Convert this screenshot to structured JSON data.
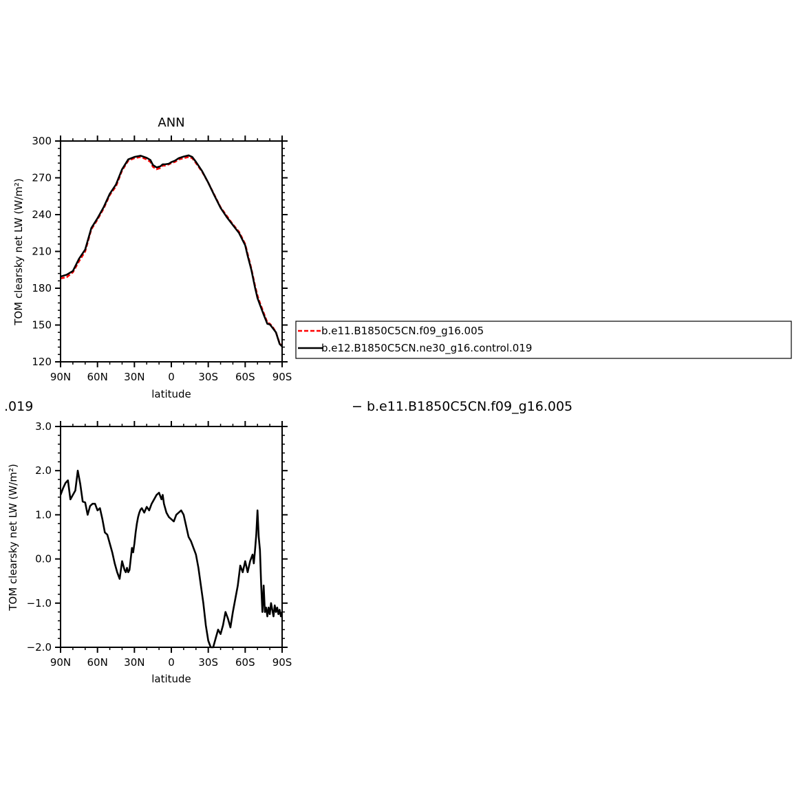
{
  "chart_data": [
    {
      "type": "line",
      "title": "ANN",
      "xlabel": "latitude",
      "ylabel": "TOM clearsky net LW (W/m²)",
      "xlim": [
        -90,
        90
      ],
      "ylim": [
        120,
        300
      ],
      "x_tick_values": [
        -90,
        -60,
        -30,
        0,
        30,
        60,
        90
      ],
      "x_tick_labels": [
        "90N",
        "60N",
        "30N",
        "0",
        "30S",
        "60S",
        "90S"
      ],
      "y_tick_values": [
        120,
        150,
        180,
        210,
        240,
        270,
        300
      ],
      "y_tick_labels": [
        "120",
        "150",
        "180",
        "210",
        "240",
        "270",
        "300"
      ],
      "grid": false,
      "legend_position": "right, outside plot",
      "series": [
        {
          "name": "b.e11.B1850C5CN.f09_g16.005",
          "color": "#ff0000",
          "style": "dashed",
          "x": [
            -90,
            -85,
            -80,
            -75,
            -70,
            -65,
            -60,
            -55,
            -50,
            -45,
            -40,
            -35,
            -30,
            -25,
            -20,
            -17,
            -15,
            -12,
            -9,
            -7,
            -5,
            -2,
            0,
            3,
            6,
            10,
            14,
            17,
            20,
            25,
            30,
            35,
            40,
            45,
            50,
            55,
            60,
            62,
            65,
            68,
            70,
            72,
            75,
            78,
            80,
            82,
            85,
            88,
            90
          ],
          "y": [
            188,
            189,
            193,
            202,
            210,
            228,
            236,
            245,
            256,
            263,
            276,
            284,
            286,
            287,
            285,
            283,
            279,
            277,
            278,
            280,
            280,
            281,
            282,
            283,
            285,
            286,
            287,
            286,
            282,
            275,
            266,
            256,
            246,
            239,
            232,
            226,
            216,
            208,
            196,
            182,
            174,
            168,
            160,
            152,
            151,
            149,
            144,
            135,
            133
          ]
        },
        {
          "name": "b.e12.B1850C5CN.ne30_g16.control.019",
          "color": "#000000",
          "style": "solid",
          "x": [
            -90,
            -85,
            -80,
            -75,
            -70,
            -65,
            -60,
            -55,
            -50,
            -45,
            -40,
            -35,
            -30,
            -25,
            -20,
            -17,
            -15,
            -12,
            -9,
            -7,
            -5,
            -2,
            0,
            3,
            6,
            10,
            14,
            17,
            20,
            25,
            30,
            35,
            40,
            45,
            50,
            55,
            60,
            62,
            65,
            68,
            70,
            72,
            75,
            78,
            80,
            82,
            85,
            88,
            90
          ],
          "y": [
            189.5,
            191,
            194,
            204,
            211.5,
            229,
            237,
            246,
            257,
            264.5,
            277,
            285,
            287,
            288,
            286.3,
            284.5,
            280.5,
            278.5,
            279.3,
            281,
            281,
            281.5,
            282.8,
            284,
            286,
            287.3,
            288.3,
            287,
            283,
            275.5,
            266,
            255.5,
            245.5,
            238,
            231.5,
            225,
            215,
            206.5,
            195,
            180.5,
            172,
            166.5,
            158.5,
            151,
            150.5,
            148,
            144,
            134.5,
            132.5
          ]
        }
      ]
    },
    {
      "type": "line",
      "title": "",
      "xlabel": "latitude",
      "ylabel": "TOM clearsky net LW (W/m²)",
      "xlim": [
        -90,
        90
      ],
      "ylim": [
        -2.0,
        3.0
      ],
      "x_tick_values": [
        -90,
        -60,
        -30,
        0,
        30,
        60,
        90
      ],
      "x_tick_labels": [
        "90N",
        "60N",
        "30N",
        "0",
        "30S",
        "60S",
        "90S"
      ],
      "y_tick_values": [
        -2.0,
        -1.0,
        0.0,
        1.0,
        2.0,
        3.0
      ],
      "y_tick_labels": [
        "−2.0",
        "−1.0",
        "0.0",
        "1.0",
        "2.0",
        "3.0"
      ],
      "grid": false,
      "series": [
        {
          "color": "#000000",
          "style": "solid",
          "x": [
            -90,
            -88,
            -86,
            -84,
            -82,
            -80,
            -78,
            -76,
            -74,
            -72,
            -70,
            -68,
            -66,
            -64,
            -62,
            -60,
            -58,
            -56,
            -54,
            -52,
            -50,
            -48,
            -46,
            -44,
            -42,
            -40,
            -38,
            -37,
            -36,
            -35,
            -34,
            -33,
            -32,
            -31,
            -30,
            -29,
            -28,
            -27,
            -26,
            -25,
            -24,
            -22,
            -20,
            -18,
            -16,
            -14,
            -12,
            -10,
            -8,
            -7,
            -6,
            -4,
            -2,
            0,
            2,
            4,
            6,
            8,
            10,
            12,
            14,
            16,
            18,
            20,
            22,
            24,
            26,
            28,
            30,
            32,
            34,
            36,
            38,
            40,
            42,
            44,
            46,
            48,
            50,
            52,
            54,
            56,
            58,
            60,
            62,
            64,
            66,
            67,
            68,
            69,
            70,
            71,
            72,
            73,
            74,
            75,
            76,
            77,
            78,
            79,
            80,
            81,
            82,
            83,
            84,
            85,
            86,
            87,
            88,
            89,
            90
          ],
          "y": [
            1.45,
            1.6,
            1.72,
            1.78,
            1.35,
            1.45,
            1.55,
            2.0,
            1.7,
            1.3,
            1.28,
            1.0,
            1.2,
            1.25,
            1.25,
            1.1,
            1.15,
            0.9,
            0.6,
            0.55,
            0.35,
            0.15,
            -0.1,
            -0.3,
            -0.45,
            -0.05,
            -0.25,
            -0.3,
            -0.2,
            -0.3,
            -0.25,
            0.0,
            0.25,
            0.15,
            0.35,
            0.6,
            0.8,
            0.95,
            1.05,
            1.12,
            1.15,
            1.05,
            1.18,
            1.1,
            1.25,
            1.35,
            1.45,
            1.5,
            1.35,
            1.45,
            1.25,
            1.05,
            0.95,
            0.9,
            0.85,
            1.0,
            1.05,
            1.1,
            1.0,
            0.75,
            0.5,
            0.4,
            0.25,
            0.1,
            -0.2,
            -0.6,
            -1.0,
            -1.5,
            -1.85,
            -2.0,
            -2.0,
            -1.8,
            -1.6,
            -1.7,
            -1.5,
            -1.2,
            -1.35,
            -1.55,
            -1.2,
            -0.9,
            -0.6,
            -0.15,
            -0.3,
            -0.05,
            -0.3,
            -0.05,
            0.1,
            -0.1,
            0.2,
            0.55,
            1.1,
            0.5,
            0.2,
            -0.6,
            -1.2,
            -0.6,
            -1.2,
            -1.1,
            -1.3,
            -1.1,
            -1.25,
            -1.0,
            -1.15,
            -1.3,
            -1.05,
            -1.2,
            -1.1,
            -1.25,
            -1.15,
            -1.3,
            -1.2
          ]
        }
      ]
    }
  ],
  "legend": {
    "items": [
      {
        "label": "b.e11.B1850C5CN.f09_g16.005",
        "color": "#ff0000",
        "style": "dashed"
      },
      {
        "label": "b.e12.B1850C5CN.ne30_g16.control.019",
        "color": "#000000",
        "style": "solid"
      }
    ]
  },
  "stray_labels": {
    "left": ".019",
    "right": "− b.e11.B1850C5CN.f09_g16.005"
  }
}
